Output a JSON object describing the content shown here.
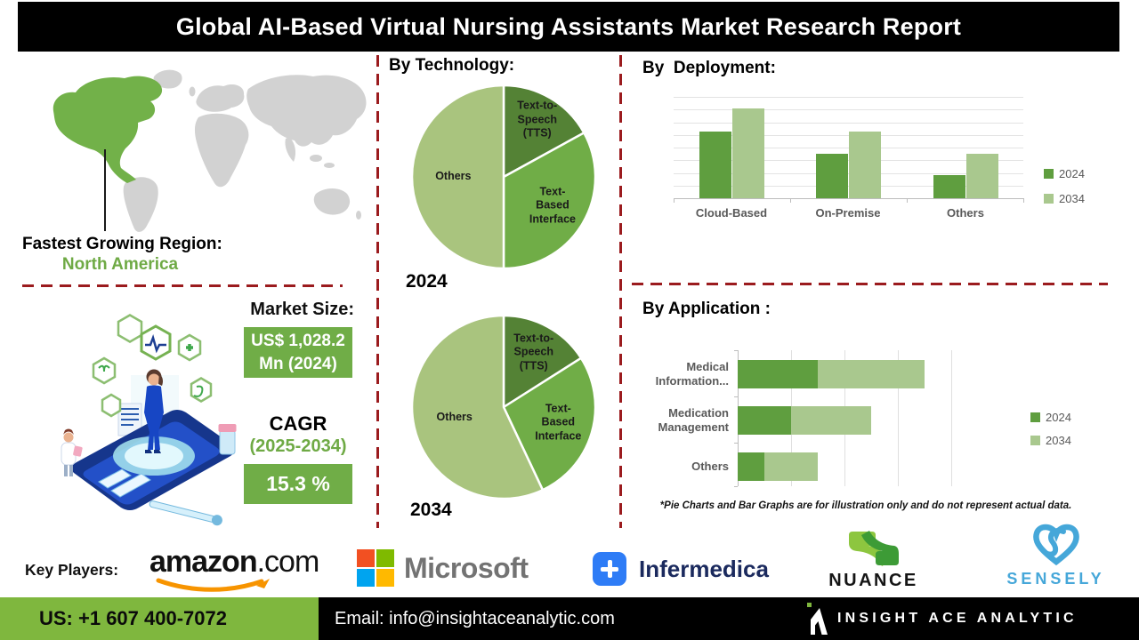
{
  "title": "Global AI-Based Virtual Nursing Assistants Market Research Report",
  "map": {
    "label": "Fastest Growing Region:",
    "region": "North America",
    "highlight_color": "#72b149",
    "land_color": "#d2d2d2"
  },
  "market": {
    "heading": "Market Size:",
    "value_line1": "US$ 1,028.2",
    "value_line2": "Mn (2024)",
    "cagr_label": "CAGR",
    "cagr_period": "(2025-2034)",
    "cagr_value": "15.3 %"
  },
  "sections": {
    "technology": {
      "heading": "By Technology:"
    },
    "deployment": {
      "heading": "By  Deployment:"
    },
    "application": {
      "heading": "By Application :",
      "footnote": "*Pie Charts and Bar Graphs are for illustration only and do not represent actual data."
    }
  },
  "chart_data": [
    {
      "id": "tech-2024",
      "type": "pie",
      "title": "2024",
      "legend_position": "none",
      "note": "illustrative values estimated from slice angles",
      "slices": [
        {
          "label": "Text-to-Speech\n(TTS)",
          "value": 17,
          "color": "#548235"
        },
        {
          "label": "Text-Based\nInterface",
          "value": 33,
          "color": "#70ad47"
        },
        {
          "label": "Others",
          "value": 50,
          "color": "#a9c47e"
        }
      ]
    },
    {
      "id": "tech-2034",
      "type": "pie",
      "title": "2034",
      "legend_position": "none",
      "note": "illustrative values estimated from slice angles",
      "slices": [
        {
          "label": "Text-to-\nSpeech (TTS)",
          "value": 16,
          "color": "#548235"
        },
        {
          "label": "Text-Based\nInterface",
          "value": 27,
          "color": "#70ad47"
        },
        {
          "label": "Others",
          "value": 57,
          "color": "#a9c47e"
        }
      ]
    },
    {
      "id": "deployment",
      "type": "bar",
      "title": "By Deployment",
      "categories": [
        "Cloud-Based",
        "On-Premise",
        "Others"
      ],
      "series": [
        {
          "name": "2024",
          "color": "#5f9e3f",
          "values": [
            5.3,
            3.5,
            1.8
          ]
        },
        {
          "name": "2034",
          "color": "#a9c88e",
          "values": [
            7.1,
            5.3,
            3.5
          ]
        }
      ],
      "ylim": [
        0,
        8
      ],
      "grid": true,
      "legend_position": "right",
      "note": "illustrative values estimated from bar heights"
    },
    {
      "id": "application",
      "type": "bar-horizontal-stacked",
      "title": "By Application",
      "categories": [
        "Medical\nInformation...",
        "Medication\nManagement",
        "Others"
      ],
      "series": [
        {
          "name": "2024",
          "color": "#5f9e3f",
          "values": [
            1.5,
            1.0,
            0.5
          ]
        },
        {
          "name": "2034",
          "color": "#a9c88e",
          "values": [
            2.0,
            1.5,
            1.0
          ]
        }
      ],
      "xlim": [
        0,
        4
      ],
      "grid": true,
      "legend_position": "right",
      "note": "illustrative values estimated from bar lengths"
    }
  ],
  "key_players": {
    "label": "Key Players:",
    "amazon_word": "amazon",
    "amazon_suffix": ".com",
    "microsoft": "Microsoft",
    "infermedica": "Infermedica",
    "nuance": "NUANCE",
    "sensely": "SENSELY"
  },
  "footer": {
    "phone": "US: +1 607 400-7072",
    "email": "Email: info@insightaceanalytic.com",
    "brand": "INSIGHT ACE ANALYTIC"
  },
  "colors": {
    "pie_dark": "#548235",
    "pie_mid": "#70ad47",
    "pie_light": "#a9c47e",
    "bar_2024": "#5f9e3f",
    "bar_2034": "#a9c88e",
    "dash_red": "#9b1b1e",
    "footer_green": "#7fb73e",
    "accent_green_text": "#6faa45"
  }
}
